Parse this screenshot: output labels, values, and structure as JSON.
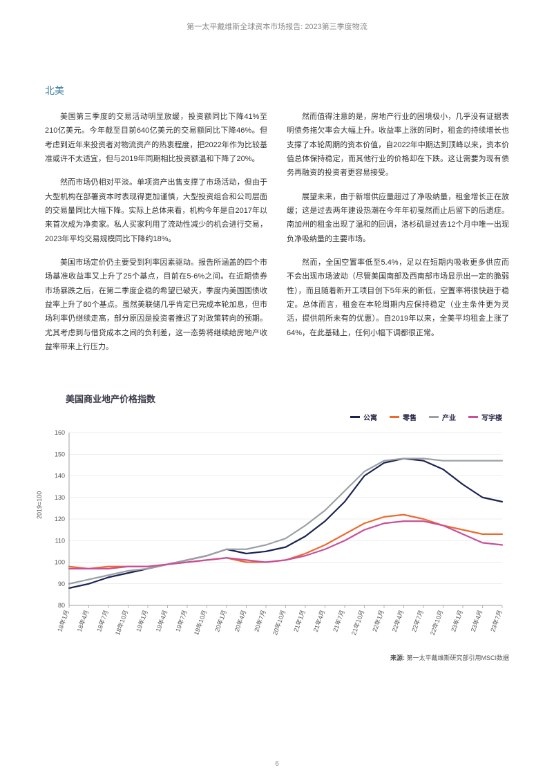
{
  "header": "第一太平戴维斯全球资本市场报告: 2023第三季度物流",
  "section_title": "北美",
  "left_paragraphs": [
    "美国第三季度的交易活动明显放缓，投资额同比下降41%至210亿美元。今年截至目前640亿美元的交易额同比下降46%。但考虑到近年来投资者对物流资产的热衷程度，把2022年作为比较基准或许不太适宜，但与2019年同期相比投资额温和下降了20%。",
    "然而市场仍相对平淡。单项资产出售支撑了市场活动，但由于大型机构在部署资本时表现得更加谨慎，大型投资组合和公司层面的交易量同比大幅下降。实际上总体来看，机构今年是自2017年以来首次成为净卖家。私人买家利用了流动性减少的机会进行交易，2023年平均交易规模同比下降约18%。",
    "美国市场定价仍主要受到利率因素驱动。报告所涵盖的四个市场基准收益率又上升了25个基点，目前在5-6%之间。在近期债券市场暴跌之后，在第二季度企稳的希望已破灭，季度内美国国债收益率上升了80个基点。虽然美联储几乎肯定已完成本轮加息，但市场利率仍继续走高，部分原因是投资者推迟了对政策转向的预期。尤其考虑到与借贷成本之间的负利差，这一态势将继续给房地产收益率带来上行压力。"
  ],
  "right_paragraphs": [
    "然而值得注意的是，房地产行业的困境极小，几乎没有证据表明债务拖欠率会大幅上升。收益率上涨的同时，租金的持续增长也支撑了本轮周期的资本价值，自2022年中期达到顶峰以来，资本价值总体保持稳定，而其他行业的价格却在下跌。这让需要为现有债务再融资的投资者更容易接受。",
    "展望未来，由于新增供应量超过了净吸纳量，租金增长正在放缓；这是过去两年建设热潮在今年年初戛然而止后留下的后遗症。南加州的租金出现了温和的回调，洛杉矶是过去12个月中唯一出现负净吸纳量的主要市场。",
    "然而，全国空置率低至5.4%，足以在短期内吸收更多供应而不会出现市场波动（尽管美国南部及西南部市场显示出一定的脆弱性），而且随着新开工项目创下5年来的新低，空置率将很快趋于稳定。总体而言，租金在本轮周期内应保持稳定（业主条件更为灵活，提供前所未有的优惠）。自2019年以来，全美平均租金上涨了64%，在此基础上，任何小幅下调都很正常。"
  ],
  "chart": {
    "title": "美国商业地产价格指数",
    "type": "line",
    "ylabel": "2019=100",
    "ylim": [
      80,
      160
    ],
    "ytick_step": 10,
    "yticks": [
      80,
      90,
      100,
      110,
      120,
      130,
      140,
      150,
      160
    ],
    "xlabels": [
      "18年1月",
      "18年4月",
      "18年7月",
      "18年10月",
      "19年1月",
      "19年4月",
      "19年7月",
      "19年10月",
      "20年1月",
      "20年4月",
      "20年7月",
      "20年10月",
      "21年1月",
      "21年4月",
      "21年7月",
      "21年10月",
      "22年1月",
      "22年4月",
      "22年7月",
      "22年10月",
      "23年1月",
      "23年4月",
      "23年7月"
    ],
    "series": [
      {
        "name": "公寓",
        "color": "#1a2252",
        "width": 2.2,
        "values": [
          88,
          90,
          93,
          95,
          97,
          99,
          101,
          103,
          106,
          104,
          105,
          107,
          112,
          119,
          128,
          140,
          146,
          148,
          147,
          143,
          136,
          130,
          128
        ]
      },
      {
        "name": "零售",
        "color": "#ed6a2c",
        "width": 2.2,
        "values": [
          98,
          97,
          98,
          98,
          98,
          99,
          100,
          101,
          102,
          100,
          100,
          101,
          104,
          108,
          113,
          118,
          121,
          122,
          120,
          117,
          115,
          113,
          113
        ]
      },
      {
        "name": "产业",
        "color": "#9aa0a6",
        "width": 2.2,
        "values": [
          90,
          92,
          94,
          96,
          97,
          99,
          101,
          103,
          106,
          106,
          108,
          111,
          117,
          124,
          133,
          142,
          147,
          148,
          148,
          147,
          147,
          147,
          147
        ]
      },
      {
        "name": "写字楼",
        "color": "#c94f9a",
        "width": 2.2,
        "values": [
          97,
          97,
          97,
          98,
          98,
          99,
          100,
          101,
          102,
          101,
          100,
          101,
          103,
          106,
          110,
          115,
          118,
          119,
          119,
          117,
          113,
          109,
          108
        ]
      }
    ],
    "background_color": "#ffffff",
    "grid_color": "#dddddd",
    "axis_color": "#888888",
    "label_fontsize": 9
  },
  "source_label": "来源:",
  "source_text": "第一太平戴维斯研究部引用MSCI数据",
  "page_number": "6"
}
